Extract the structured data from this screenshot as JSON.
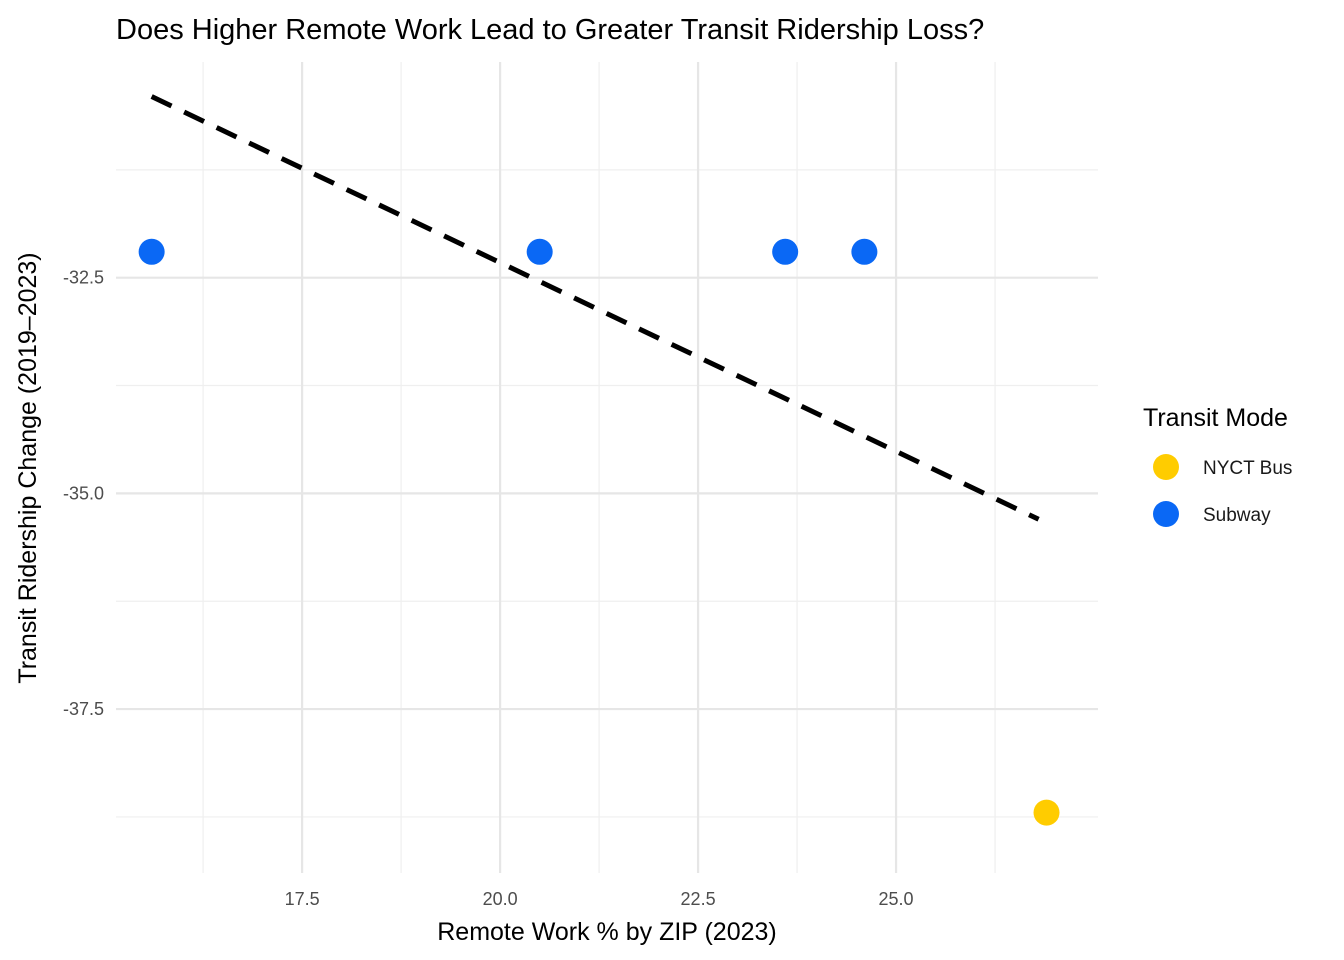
{
  "chart_data": {
    "type": "scatter",
    "title": "Does Higher Remote Work Lead to Greater Transit Ridership Loss?",
    "xlabel": "Remote Work % by ZIP (2023)",
    "ylabel": "Transit Ridership Change (2019–2023)",
    "xlim": [
      15.15,
      27.55
    ],
    "ylim": [
      -39.4,
      -30.0
    ],
    "x_ticks": [
      17.5,
      20.0,
      22.5,
      25.0
    ],
    "x_tick_labels": [
      "17.5",
      "20.0",
      "22.5",
      "25.0"
    ],
    "x_minor_ticks": [
      16.25,
      18.75,
      21.25,
      23.75,
      26.25
    ],
    "y_ticks": [
      -32.5,
      -35.0,
      -37.5
    ],
    "y_tick_labels": [
      "-32.5",
      "-35.0",
      "-37.5"
    ],
    "y_minor_ticks": [
      -31.25,
      -33.75,
      -36.25,
      -38.75
    ],
    "grid": true,
    "legend": {
      "title": "Transit Mode",
      "position": "right",
      "entries": [
        {
          "label": "NYCT Bus",
          "color": "#FFCC00"
        },
        {
          "label": "Subway",
          "color": "#0A68F5"
        }
      ]
    },
    "series": [
      {
        "name": "NYCT Bus",
        "color": "#FFCC00",
        "points": [
          {
            "x": 26.9,
            "y": -38.7
          }
        ]
      },
      {
        "name": "Subway",
        "color": "#0A68F5",
        "points": [
          {
            "x": 15.6,
            "y": -32.2
          },
          {
            "x": 20.5,
            "y": -32.2
          },
          {
            "x": 23.6,
            "y": -32.2
          },
          {
            "x": 24.6,
            "y": -32.2
          }
        ]
      }
    ],
    "trend_line": {
      "style": "dashed",
      "color": "#000000",
      "from": {
        "x": 15.6,
        "y": -30.4
      },
      "to": {
        "x": 26.8,
        "y": -35.3
      }
    }
  }
}
